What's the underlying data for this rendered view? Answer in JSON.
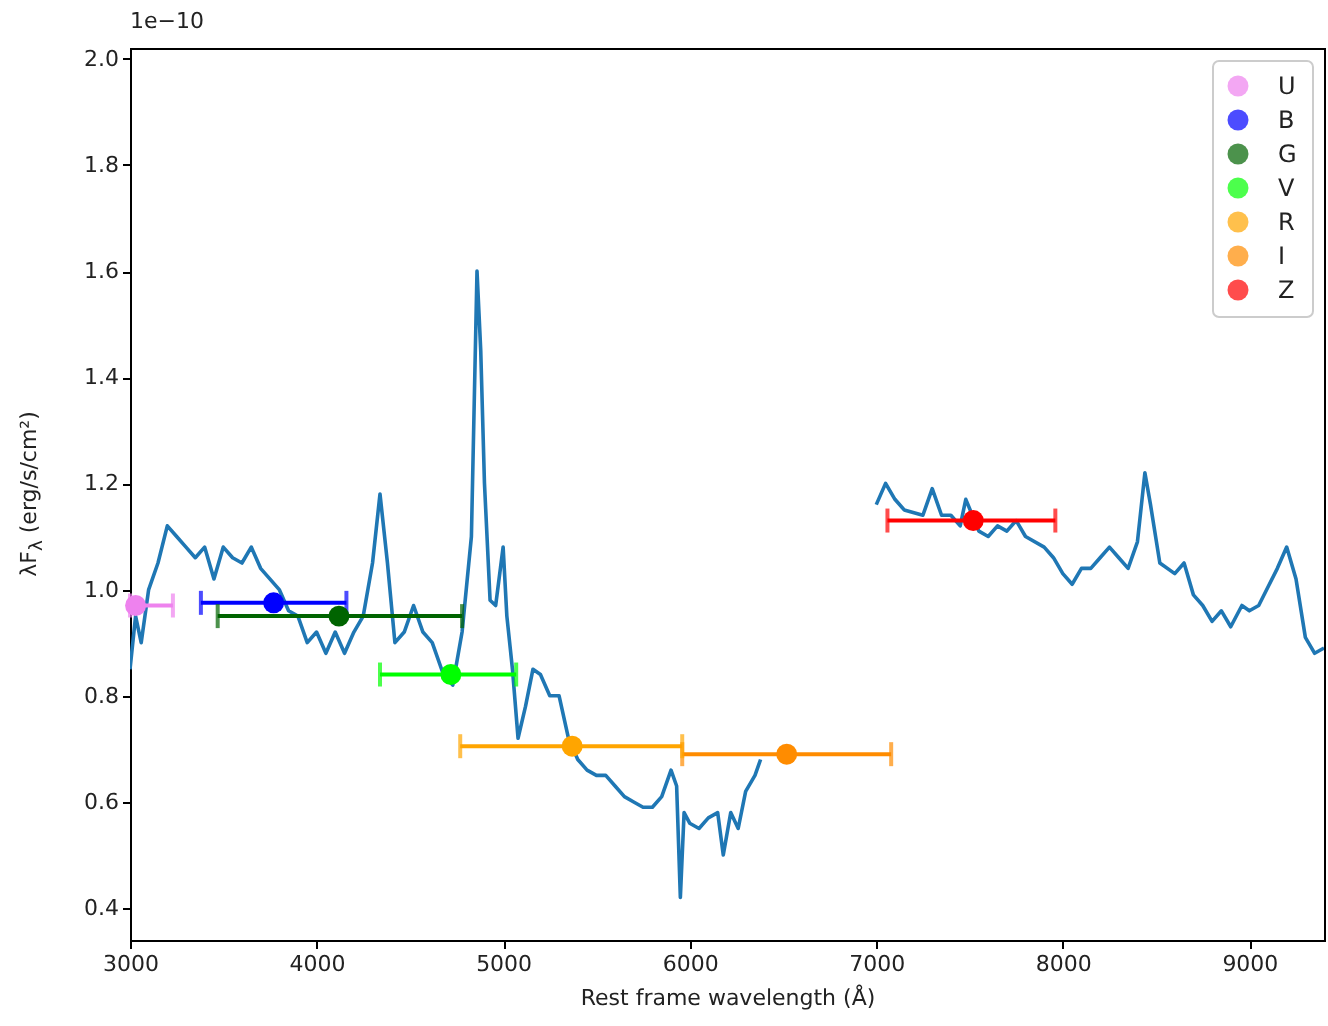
{
  "chart_data": {
    "type": "line",
    "xlabel": "Rest frame wavelength (Å)",
    "ylabel": "λF$_{λ}$ (erg/s/cm²)",
    "annotations": [
      "1e−10"
    ],
    "xlim": [
      3000,
      9400
    ],
    "ylim": [
      0.34,
      2.02
    ],
    "xticks": [
      3000,
      4000,
      5000,
      6000,
      7000,
      8000,
      9000
    ],
    "yticks": [
      0.4,
      0.6,
      0.8,
      {
        "value": 1,
        "label": "1.0"
      },
      1.2,
      1.4,
      1.6,
      1.8,
      {
        "value": 2,
        "label": "2.0"
      }
    ],
    "grid": false,
    "legend": "top right",
    "marker": "circle",
    "series": [
      {
        "color": "#1f77b4",
        "marker": "none",
        "x": [
          3000,
          3030,
          3060,
          3100,
          3150,
          3200,
          3250,
          3300,
          3350,
          3400,
          3450,
          3500,
          3550,
          3600,
          3650,
          3700,
          3800,
          3850,
          3900,
          3950,
          4000,
          4050,
          4100,
          4150,
          4200,
          4250,
          4300,
          4340,
          4380,
          4420,
          4470,
          4520,
          4570,
          4620,
          4680,
          4730,
          4780,
          4830,
          4860,
          4880,
          4900,
          4930,
          4960,
          5000,
          5020,
          5050,
          5080,
          5120,
          5160,
          5200,
          5250,
          5300,
          5350,
          5400,
          5450,
          5500,
          5550,
          5600,
          5650,
          5700,
          5750,
          5800,
          5850,
          5900,
          5930,
          5950,
          5970,
          6000,
          6050,
          6100,
          6150,
          6180,
          6220,
          6260,
          6300,
          6350,
          6380,
          6700,
          7000,
          7050,
          7100,
          7150,
          7250,
          7300,
          7350,
          7400,
          7450,
          7480,
          7550,
          7600,
          7650,
          7700,
          7750,
          7800,
          7900,
          7950,
          8000,
          8050,
          8100,
          8150,
          8200,
          8250,
          8300,
          8350,
          8400,
          8440,
          8470,
          8520,
          8600,
          8650,
          8700,
          8750,
          8800,
          8850,
          8900,
          8960,
          9000,
          9050,
          9150,
          9200,
          9250,
          9300,
          9350,
          9400
        ],
        "values": [
          0.85,
          0.95,
          0.9,
          1.0,
          1.05,
          1.12,
          1.1,
          1.08,
          1.06,
          1.08,
          1.02,
          1.08,
          1.06,
          1.05,
          1.08,
          1.04,
          1.0,
          0.96,
          0.95,
          0.9,
          0.92,
          0.88,
          0.92,
          0.88,
          0.92,
          0.95,
          1.05,
          1.18,
          1.05,
          0.9,
          0.92,
          0.97,
          0.92,
          0.9,
          0.84,
          0.82,
          0.92,
          1.1,
          1.6,
          1.45,
          1.2,
          0.98,
          0.97,
          1.08,
          0.95,
          0.85,
          0.72,
          0.78,
          0.85,
          0.84,
          0.8,
          0.8,
          0.72,
          0.68,
          0.66,
          0.65,
          0.65,
          0.63,
          0.61,
          0.6,
          0.59,
          0.59,
          0.61,
          0.66,
          0.63,
          0.42,
          0.58,
          0.56,
          0.55,
          0.57,
          0.58,
          0.5,
          0.58,
          0.55,
          0.62,
          0.65,
          0.68,
          null,
          1.16,
          1.2,
          1.17,
          1.15,
          1.14,
          1.19,
          1.14,
          1.14,
          1.12,
          1.17,
          1.11,
          1.1,
          1.12,
          1.11,
          1.13,
          1.1,
          1.08,
          1.06,
          1.03,
          1.01,
          1.04,
          1.04,
          1.06,
          1.08,
          1.06,
          1.04,
          1.09,
          1.22,
          1.16,
          1.05,
          1.03,
          1.05,
          0.99,
          0.97,
          0.94,
          0.96,
          0.93,
          0.97,
          0.96,
          0.97,
          1.04,
          1.08,
          1.02,
          0.91,
          0.88,
          0.89
        ]
      },
      {
        "type": "scatter",
        "name": "U",
        "color": "#ee82ee",
        "x": [
          3030
        ],
        "values": [
          0.97
        ],
        "xerrors": [
          [
            3000,
            3230
          ]
        ]
      },
      {
        "type": "scatter",
        "name": "B",
        "color": "#0000ff",
        "x": [
          3770
        ],
        "values": [
          0.975
        ],
        "xerrors": [
          [
            3380,
            4160
          ]
        ]
      },
      {
        "type": "scatter",
        "name": "G",
        "color": "#006400",
        "x": [
          4120
        ],
        "values": [
          0.95
        ],
        "xerrors": [
          [
            3470,
            4780
          ]
        ]
      },
      {
        "type": "scatter",
        "name": "V",
        "color": "#00ff00",
        "x": [
          4720
        ],
        "values": [
          0.84
        ],
        "xerrors": [
          [
            4340,
            5070
          ]
        ]
      },
      {
        "type": "scatter",
        "name": "R",
        "color": "#ffa500",
        "x": [
          5370
        ],
        "values": [
          0.705
        ],
        "xerrors": [
          [
            4770,
            5960
          ]
        ]
      },
      {
        "type": "scatter",
        "name": "I",
        "color": "#ff8c00",
        "x": [
          6520
        ],
        "values": [
          0.69
        ],
        "xerrors": [
          [
            5960,
            7080
          ]
        ]
      },
      {
        "type": "scatter",
        "name": "Z",
        "color": "#ff0000",
        "x": [
          7520
        ],
        "values": [
          1.13
        ],
        "xerrors": [
          [
            7060,
            7960
          ]
        ]
      }
    ]
  }
}
